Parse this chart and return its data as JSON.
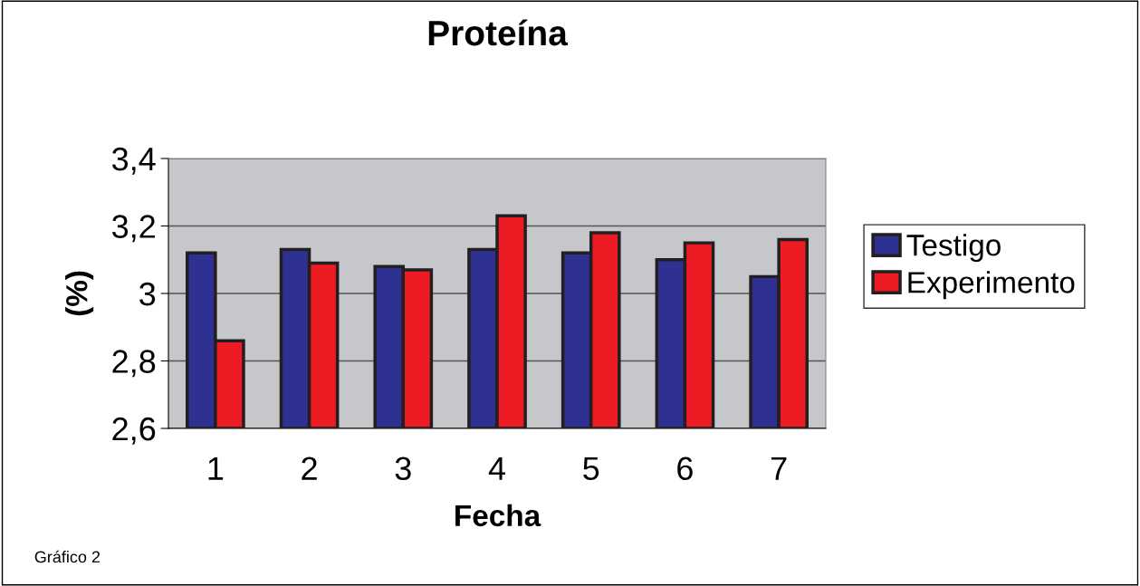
{
  "chart_data": {
    "type": "bar",
    "title": "Proteína",
    "xlabel": "Fecha",
    "ylabel": "(%)",
    "categories": [
      "1",
      "2",
      "3",
      "4",
      "5",
      "6",
      "7"
    ],
    "series": [
      {
        "name": "Testigo",
        "color": "#2e3192",
        "values": [
          3.12,
          3.13,
          3.08,
          3.13,
          3.12,
          3.1,
          3.05
        ]
      },
      {
        "name": "Experimento",
        "color": "#ed1c24",
        "values": [
          2.86,
          3.09,
          3.07,
          3.23,
          3.18,
          3.15,
          3.16
        ]
      }
    ],
    "ylim": [
      2.6,
      3.4
    ],
    "yticks": [
      {
        "value": 2.6,
        "label": "2,6"
      },
      {
        "value": 2.8,
        "label": "2,8"
      },
      {
        "value": 3,
        "label": "3"
      },
      {
        "value": 3.2,
        "label": "3,2"
      },
      {
        "value": 3.4,
        "label": "3,4"
      }
    ],
    "grid": "y",
    "legend": "right",
    "annotations": [
      "Gráfico 2"
    ]
  }
}
